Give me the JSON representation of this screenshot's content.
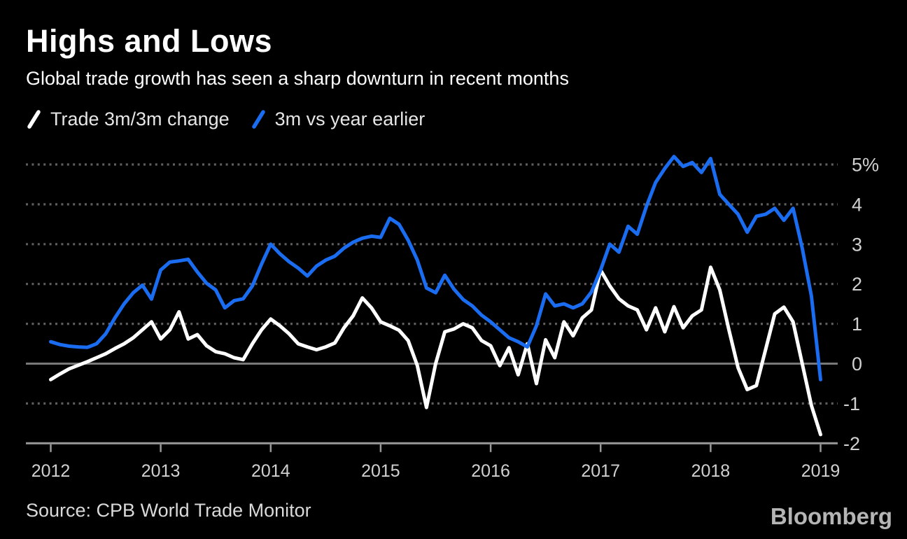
{
  "header": {
    "title": "Highs and Lows",
    "subtitle": "Global trade growth has seen a sharp downturn in recent months"
  },
  "legend": [
    {
      "label": "Trade 3m/3m change",
      "color": "#ffffff"
    },
    {
      "label": "3m vs year earlier",
      "color": "#1a6cf1"
    }
  ],
  "footer": {
    "source": "Source: CPB World Trade Monitor",
    "brand": "Bloomberg"
  },
  "colors": {
    "background": "#000000",
    "series_white": "#ffffff",
    "series_blue": "#1a6cf1",
    "gridline": "#5e5e5e",
    "zero_line": "#787878",
    "axis_line": "#999999",
    "tick_label": "#d0d0d0"
  },
  "chart_data": {
    "type": "line",
    "title": "Highs and Lows",
    "subtitle": "Global trade growth has seen a sharp downturn in recent months",
    "x_unit": "month",
    "x_start": "2012-01",
    "x_end": "2019-01",
    "x_tick_labels": [
      "2012",
      "2013",
      "2014",
      "2015",
      "2016",
      "2017",
      "2018",
      "2019"
    ],
    "y_ticks": [
      5,
      4,
      3,
      2,
      1,
      0,
      -1,
      -2
    ],
    "y_tick_labels": [
      "5%",
      "4",
      "3",
      "2",
      "1",
      "0",
      "-1",
      "-2"
    ],
    "ylim": [
      -2,
      5.6
    ],
    "grid": "dotted horizontal, solid zero line, labels on right",
    "legend_position": "top-left above plot",
    "series": [
      {
        "name": "Trade 3m/3m change",
        "color": "#ffffff",
        "values": [
          -0.4,
          -0.26,
          -0.13,
          -0.04,
          0.05,
          0.15,
          0.25,
          0.38,
          0.5,
          0.65,
          0.85,
          1.05,
          0.62,
          0.85,
          1.3,
          0.62,
          0.73,
          0.45,
          0.3,
          0.25,
          0.15,
          0.1,
          0.5,
          0.85,
          1.12,
          0.95,
          0.75,
          0.5,
          0.42,
          0.35,
          0.42,
          0.52,
          0.9,
          1.2,
          1.65,
          1.4,
          1.05,
          0.95,
          0.84,
          0.58,
          -0.05,
          -1.1,
          0.0,
          0.8,
          0.87,
          1.0,
          0.9,
          0.58,
          0.45,
          -0.05,
          0.4,
          -0.28,
          0.5,
          -0.5,
          0.6,
          0.15,
          1.05,
          0.7,
          1.15,
          1.35,
          2.35,
          1.95,
          1.63,
          1.45,
          1.35,
          0.85,
          1.4,
          0.8,
          1.43,
          0.9,
          1.2,
          1.35,
          2.42,
          1.85,
          0.85,
          -0.1,
          -0.65,
          -0.55,
          0.35,
          1.25,
          1.42,
          1.05,
          0.0,
          -1.05,
          -1.78
        ]
      },
      {
        "name": "3m vs year earlier",
        "color": "#1a6cf1",
        "values": [
          0.55,
          0.48,
          0.44,
          0.42,
          0.41,
          0.5,
          0.75,
          1.15,
          1.5,
          1.78,
          1.97,
          1.62,
          2.35,
          2.55,
          2.58,
          2.62,
          2.3,
          2.02,
          1.85,
          1.4,
          1.58,
          1.63,
          1.95,
          2.5,
          3.0,
          2.76,
          2.56,
          2.4,
          2.2,
          2.45,
          2.6,
          2.7,
          2.9,
          3.05,
          3.15,
          3.2,
          3.17,
          3.65,
          3.5,
          3.1,
          2.6,
          1.9,
          1.78,
          2.22,
          1.87,
          1.61,
          1.45,
          1.22,
          1.05,
          0.85,
          0.65,
          0.55,
          0.42,
          0.95,
          1.75,
          1.45,
          1.5,
          1.4,
          1.5,
          1.8,
          2.35,
          3.0,
          2.8,
          3.45,
          3.25,
          3.95,
          4.55,
          4.9,
          5.2,
          4.95,
          5.05,
          4.8,
          5.15,
          4.25,
          4.0,
          3.75,
          3.3,
          3.7,
          3.75,
          3.9,
          3.6,
          3.9,
          2.9,
          1.7,
          -0.4
        ]
      }
    ]
  }
}
